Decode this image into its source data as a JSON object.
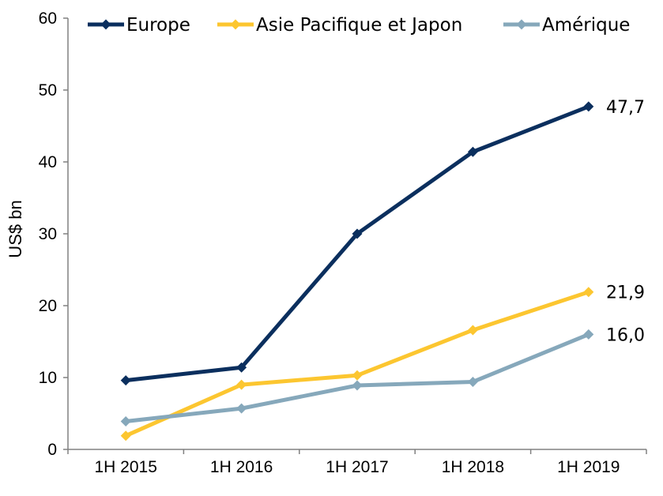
{
  "chart_data": {
    "type": "line",
    "title": "",
    "xlabel": "",
    "ylabel": "US$ bn",
    "ylim": [
      0,
      60
    ],
    "yticks": [
      "0",
      "10",
      "20",
      "30",
      "40",
      "50",
      "60"
    ],
    "categories": [
      "1H 2015",
      "1H 2016",
      "1H 2017",
      "1H 2018",
      "1H 2019"
    ],
    "grid": false,
    "legend_position": "top",
    "series": [
      {
        "name": "Europe",
        "color": "#0b2f5e",
        "values": [
          9.6,
          11.4,
          30.0,
          41.4,
          47.7
        ],
        "end_label": "47,7"
      },
      {
        "name": "Asie Pacifique et Japon",
        "color": "#fcc630",
        "values": [
          1.9,
          9.0,
          10.3,
          16.6,
          21.9
        ],
        "end_label": "21,9"
      },
      {
        "name": "Amérique",
        "color": "#86a8bb",
        "values": [
          3.9,
          5.7,
          8.9,
          9.4,
          16.0
        ],
        "end_label": "16,0"
      }
    ]
  }
}
